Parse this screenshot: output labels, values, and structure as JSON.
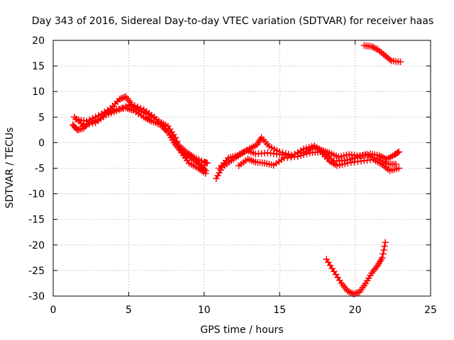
{
  "chart_data": {
    "type": "scatter",
    "title": "Day 343 of 2016, Sidereal Day-to-day VTEC variation (SDTVAR) for receiver haas",
    "xlabel": "GPS time / hours",
    "ylabel": "SDTVAR / TECUs",
    "xlim": [
      0,
      25
    ],
    "ylim": [
      -30,
      20
    ],
    "xticks": [
      0,
      5,
      10,
      15,
      20,
      25
    ],
    "yticks": [
      -30,
      -25,
      -20,
      -15,
      -10,
      -5,
      0,
      5,
      10,
      15,
      20
    ],
    "grid": true,
    "color": "#ff0000",
    "series": [
      {
        "name": "track-a",
        "points": [
          [
            1.3,
            3.5
          ],
          [
            1.6,
            2.5
          ],
          [
            2.0,
            2.8
          ],
          [
            2.4,
            4.0
          ],
          [
            3.0,
            4.5
          ],
          [
            3.6,
            6.0
          ],
          [
            4.2,
            6.5
          ],
          [
            4.8,
            6.8
          ],
          [
            5.3,
            6.3
          ],
          [
            6.0,
            5.0
          ],
          [
            6.5,
            4.2
          ],
          [
            7.1,
            3.5
          ],
          [
            7.6,
            2.0
          ],
          [
            8.0,
            0.0
          ],
          [
            8.4,
            -1.5
          ],
          [
            8.9,
            -2.5
          ],
          [
            9.4,
            -3.5
          ],
          [
            9.8,
            -4.5
          ],
          [
            10.1,
            -5.5
          ]
        ]
      },
      {
        "name": "track-b",
        "points": [
          [
            1.5,
            4.6
          ],
          [
            2.2,
            4.2
          ],
          [
            3.0,
            5.3
          ],
          [
            3.8,
            6.7
          ],
          [
            4.4,
            8.5
          ],
          [
            4.8,
            9.0
          ],
          [
            5.2,
            7.5
          ],
          [
            6.0,
            6.5
          ],
          [
            6.7,
            5.0
          ],
          [
            7.3,
            3.2
          ],
          [
            7.9,
            1.0
          ],
          [
            8.3,
            -0.5
          ],
          [
            8.8,
            -1.8
          ],
          [
            9.3,
            -2.8
          ],
          [
            10.0,
            -3.8
          ],
          [
            10.2,
            -4.0
          ]
        ]
      },
      {
        "name": "track-c",
        "points": [
          [
            1.4,
            5.0
          ],
          [
            2.0,
            3.4
          ],
          [
            2.8,
            3.9
          ],
          [
            3.5,
            5.4
          ],
          [
            4.2,
            6.2
          ],
          [
            5.0,
            7.4
          ],
          [
            5.7,
            6.3
          ],
          [
            6.3,
            5.5
          ],
          [
            7.0,
            4.2
          ],
          [
            7.6,
            3.2
          ],
          [
            8.1,
            1.0
          ],
          [
            8.5,
            -2.0
          ],
          [
            9.0,
            -4.0
          ],
          [
            9.6,
            -5.0
          ],
          [
            10.1,
            -6.0
          ]
        ]
      },
      {
        "name": "track-d",
        "points": [
          [
            10.8,
            -7.0
          ],
          [
            11.2,
            -4.8
          ],
          [
            11.8,
            -3.5
          ],
          [
            12.4,
            -2.3
          ],
          [
            13.0,
            -1.2
          ],
          [
            13.5,
            -0.4
          ],
          [
            13.8,
            1.0
          ],
          [
            14.3,
            -0.7
          ],
          [
            15.0,
            -1.8
          ],
          [
            15.8,
            -2.4
          ],
          [
            16.6,
            -1.9
          ],
          [
            17.2,
            -1.0
          ],
          [
            17.8,
            -1.5
          ],
          [
            18.3,
            -2.0
          ],
          [
            18.9,
            -2.8
          ],
          [
            19.6,
            -2.3
          ],
          [
            20.3,
            -2.6
          ],
          [
            21.0,
            -2.2
          ],
          [
            21.6,
            -2.5
          ],
          [
            22.1,
            -3.2
          ],
          [
            22.6,
            -2.4
          ],
          [
            22.9,
            -1.8
          ]
        ]
      },
      {
        "name": "track-e",
        "points": [
          [
            11.0,
            -5.0
          ],
          [
            11.6,
            -3.0
          ],
          [
            12.2,
            -2.5
          ],
          [
            12.8,
            -1.5
          ],
          [
            13.4,
            -2.2
          ],
          [
            14.2,
            -2.0
          ],
          [
            15.0,
            -2.3
          ],
          [
            15.8,
            -2.6
          ],
          [
            16.6,
            -1.2
          ],
          [
            17.3,
            -0.6
          ],
          [
            17.9,
            -1.8
          ],
          [
            18.6,
            -3.6
          ],
          [
            19.3,
            -3.5
          ],
          [
            20.0,
            -3.0
          ],
          [
            20.7,
            -2.3
          ],
          [
            21.5,
            -3.2
          ],
          [
            22.2,
            -4.2
          ],
          [
            22.7,
            -4.2
          ]
        ]
      },
      {
        "name": "track-f",
        "points": [
          [
            12.3,
            -4.5
          ],
          [
            12.9,
            -3.2
          ],
          [
            13.4,
            -3.8
          ],
          [
            14.0,
            -4.0
          ],
          [
            14.6,
            -4.4
          ],
          [
            15.3,
            -3.0
          ],
          [
            16.2,
            -2.7
          ],
          [
            17.0,
            -2.0
          ],
          [
            17.7,
            -1.8
          ],
          [
            18.3,
            -3.6
          ],
          [
            18.8,
            -4.5
          ],
          [
            19.5,
            -4.0
          ],
          [
            20.4,
            -3.6
          ],
          [
            21.2,
            -3.3
          ],
          [
            21.8,
            -4.3
          ],
          [
            22.3,
            -5.5
          ],
          [
            22.9,
            -5.0
          ]
        ]
      },
      {
        "name": "track-g",
        "points": [
          [
            20.6,
            19.0
          ],
          [
            21.1,
            18.8
          ],
          [
            21.5,
            18.2
          ],
          [
            22.0,
            17.0
          ],
          [
            22.4,
            16.0
          ],
          [
            23.0,
            15.8
          ]
        ]
      },
      {
        "name": "track-h",
        "points": [
          [
            18.1,
            -22.8
          ],
          [
            18.6,
            -25.2
          ],
          [
            19.1,
            -27.5
          ],
          [
            19.5,
            -29.0
          ],
          [
            19.9,
            -29.6
          ],
          [
            20.3,
            -29.2
          ],
          [
            20.7,
            -27.5
          ],
          [
            21.1,
            -25.5
          ],
          [
            21.5,
            -24.0
          ],
          [
            21.8,
            -22.5
          ],
          [
            22.0,
            -19.5
          ]
        ]
      }
    ]
  }
}
